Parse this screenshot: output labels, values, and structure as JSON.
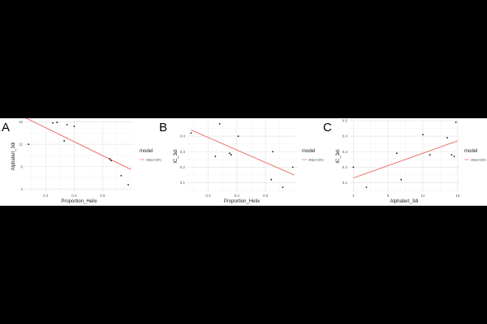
{
  "chart_data": [
    {
      "type": "scatter",
      "panel_letter": "A",
      "xlabel": "Proportion_Helix",
      "ylabel": "Alphabet_3di",
      "xlim": [
        0.05,
        0.82
      ],
      "ylim": [
        3.5,
        16.2
      ],
      "x_ticks": [
        0.2,
        0.4,
        0.6
      ],
      "y_ticks": [
        4,
        8,
        12,
        16
      ],
      "grid": true,
      "legend": {
        "title": "model",
        "entries": [
          "object (lm)"
        ],
        "placement": "right"
      },
      "series": [
        {
          "points": [
            [
              0.08,
              12.0
            ],
            [
              0.25,
              15.8
            ],
            [
              0.28,
              15.9
            ],
            [
              0.33,
              12.6
            ],
            [
              0.35,
              15.5
            ],
            [
              0.4,
              15.2
            ],
            [
              0.65,
              9.4
            ],
            [
              0.66,
              9.1
            ],
            [
              0.73,
              6.4
            ],
            [
              0.78,
              4.8
            ]
          ]
        }
      ],
      "fit": {
        "x": [
          0.05,
          0.8
        ],
        "y": [
          16.8,
          7.5
        ],
        "color": "#e8564b"
      }
    },
    {
      "type": "scatter",
      "panel_letter": "B",
      "xlabel": "Proportion_Helix",
      "ylabel": "IC_3di",
      "xlim": [
        0.05,
        0.82
      ],
      "ylim": [
        0.04,
        0.5
      ],
      "x_ticks": [
        0.2,
        0.4,
        0.6
      ],
      "y_ticks": [
        0.1,
        0.2,
        0.3,
        0.4
      ],
      "grid": true,
      "legend": {
        "title": "model",
        "entries": [
          "object (lm)"
        ],
        "placement": "right"
      },
      "series": [
        {
          "points": [
            [
              0.08,
              0.42
            ],
            [
              0.25,
              0.27
            ],
            [
              0.28,
              0.48
            ],
            [
              0.35,
              0.29
            ],
            [
              0.36,
              0.28
            ],
            [
              0.41,
              0.4
            ],
            [
              0.64,
              0.12
            ],
            [
              0.65,
              0.3
            ],
            [
              0.72,
              0.07
            ],
            [
              0.79,
              0.2
            ]
          ]
        }
      ],
      "fit": {
        "x": [
          0.08,
          0.8
        ],
        "y": [
          0.44,
          0.15
        ],
        "color": "#e8564b"
      }
    },
    {
      "type": "scatter",
      "panel_letter": "C",
      "xlabel": "Alphabet_3di",
      "ylabel": "IC_3di",
      "xlim": [
        3.5,
        16.2
      ],
      "ylim": [
        0.04,
        0.5
      ],
      "x_ticks": [
        4,
        8,
        12,
        16
      ],
      "y_ticks": [
        0.1,
        0.2,
        0.3,
        0.4,
        0.5
      ],
      "grid": true,
      "legend": {
        "title": "model",
        "entries": [
          "object (lm)"
        ],
        "placement": "right"
      },
      "series": [
        {
          "points": [
            [
              4.0,
              0.2
            ],
            [
              5.5,
              0.07
            ],
            [
              9.0,
              0.29
            ],
            [
              9.5,
              0.12
            ],
            [
              12.0,
              0.41
            ],
            [
              12.8,
              0.28
            ],
            [
              14.8,
              0.39
            ],
            [
              15.3,
              0.28
            ],
            [
              15.6,
              0.27
            ],
            [
              15.8,
              0.49
            ]
          ]
        }
      ],
      "fit": {
        "x": [
          4.0,
          16.0
        ],
        "y": [
          0.13,
          0.37
        ],
        "color": "#e8564b"
      }
    }
  ]
}
